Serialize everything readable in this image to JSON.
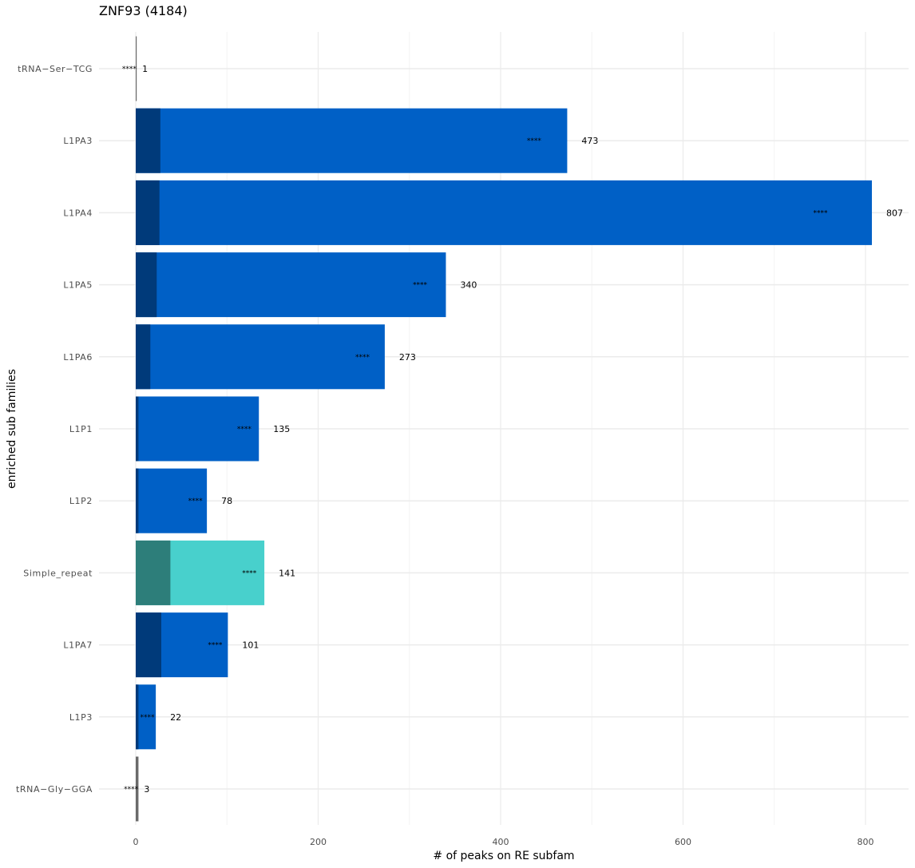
{
  "chart_data": {
    "type": "bar",
    "orientation": "horizontal",
    "title": "ZNF93 (4184)",
    "xlabel": "# of peaks on RE subfam",
    "ylabel": "enriched sub families",
    "xlim": [
      0,
      850
    ],
    "xticks": [
      0,
      200,
      400,
      600,
      800
    ],
    "grid": true,
    "categories": [
      "tRNA−Ser−TCG",
      "L1PA3",
      "L1PA4",
      "L1PA5",
      "L1PA6",
      "L1P1",
      "L1P2",
      "Simple_repeat",
      "L1PA7",
      "L1P3",
      "tRNA−Gly−GGA"
    ],
    "values": [
      1,
      473,
      807,
      340,
      273,
      135,
      78,
      141,
      101,
      22,
      3
    ],
    "dark_segment_values": [
      0,
      27,
      26,
      23,
      16,
      3,
      3,
      38,
      28,
      3,
      0
    ],
    "significance": [
      "****",
      "****",
      "****",
      "****",
      "****",
      "****",
      "****",
      "****",
      "****",
      "****",
      "****"
    ],
    "value_labels": [
      "1",
      "473",
      "807",
      "340",
      "273",
      "135",
      "78",
      "141",
      "101",
      "22",
      "3"
    ],
    "colors": {
      "L1_light": "#0060c6",
      "L1_dark": "#003a7a",
      "simple_light": "#48d0cc",
      "simple_dark": "#2d7e7a",
      "trna": "#6a6a6a",
      "grid": "#ebebeb"
    },
    "color_group": [
      "trna",
      "L1",
      "L1",
      "L1",
      "L1",
      "L1",
      "L1",
      "simple",
      "L1",
      "L1",
      "trna"
    ]
  }
}
